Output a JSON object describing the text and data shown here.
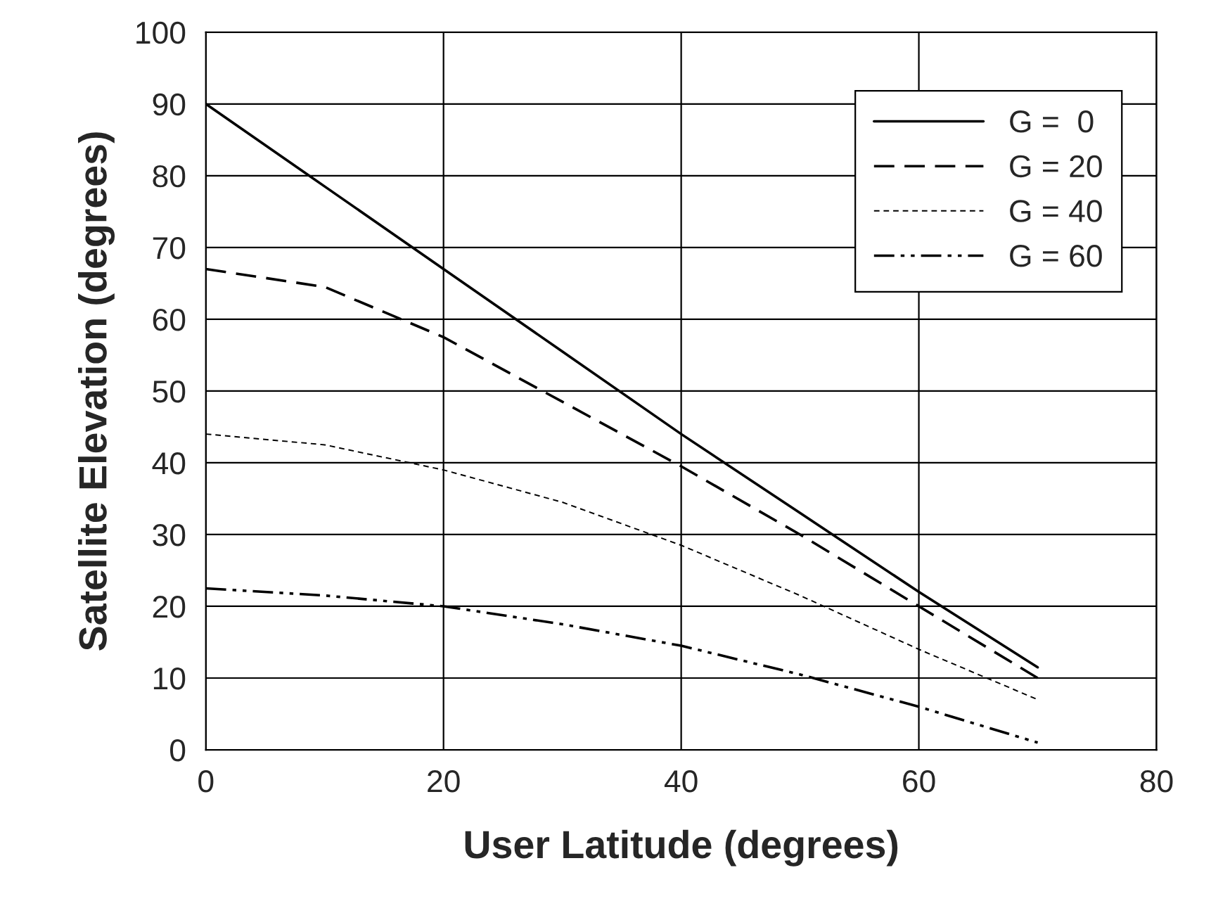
{
  "chart_data": {
    "type": "line",
    "xlabel": "User Latitude (degrees)",
    "ylabel": "Satellite Elevation (degrees)",
    "xlim": [
      0,
      80
    ],
    "xticks": [
      0,
      20,
      40,
      60,
      80
    ],
    "ylim": [
      0,
      100
    ],
    "yticks": [
      0,
      10,
      20,
      30,
      40,
      50,
      60,
      70,
      80,
      90,
      100
    ],
    "grid": true,
    "legend": "top right",
    "marker": "none",
    "x": [
      0,
      10,
      20,
      30,
      40,
      50,
      60,
      70
    ],
    "series": [
      {
        "name": "G =  0",
        "color": "#000000",
        "line_style": "solid",
        "values": [
          90,
          78.5,
          67,
          55.5,
          44,
          33,
          22,
          11.5
        ]
      },
      {
        "name": "G = 20",
        "color": "#000000",
        "line_style": "dashed",
        "values": [
          67,
          64.5,
          57.5,
          48.5,
          39.5,
          30,
          20,
          10
        ]
      },
      {
        "name": "G = 40",
        "color": "#000000",
        "line_style": "dotted",
        "values": [
          44,
          42.5,
          39,
          34.5,
          28.5,
          21.5,
          14,
          7
        ]
      },
      {
        "name": "G = 60",
        "color": "#000000",
        "line_style": "dashdot",
        "values": [
          22.5,
          21.5,
          20,
          17.5,
          14.5,
          10.5,
          6,
          1
        ]
      }
    ]
  }
}
